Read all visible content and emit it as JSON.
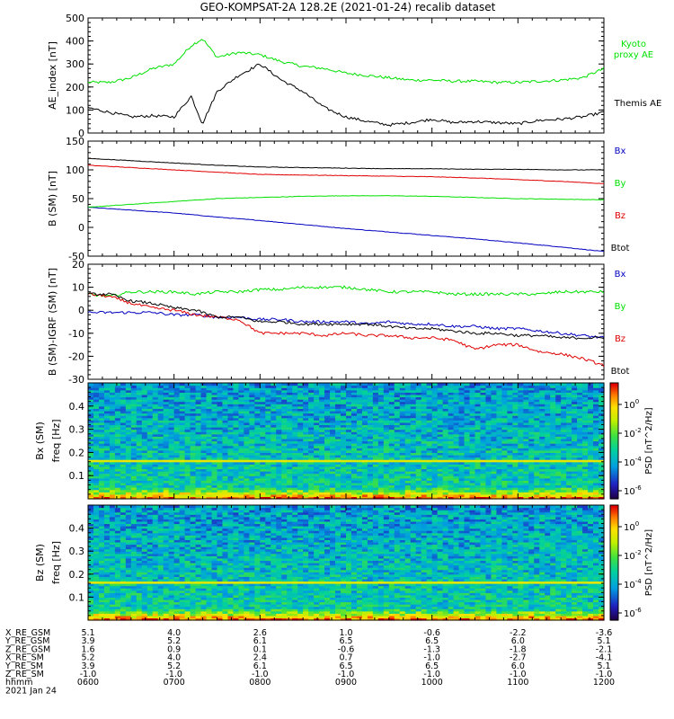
{
  "title": "GEO-KOMPSAT-2A 128.2E (2021-01-24) recalib dataset",
  "chart_data": [
    {
      "type": "line",
      "ylabel": "AE_index [nT]",
      "ylim": [
        0,
        500
      ],
      "yticks": [
        0,
        100,
        200,
        300,
        400,
        500
      ],
      "grid": false,
      "x_hours": [
        6.0,
        6.25,
        6.5,
        6.75,
        7.0,
        7.2,
        7.33,
        7.5,
        7.75,
        8.0,
        8.25,
        8.5,
        8.75,
        9.0,
        9.25,
        9.5,
        9.75,
        10.0,
        10.25,
        10.5,
        10.75,
        11.0,
        11.25,
        11.5,
        11.75,
        12.0
      ],
      "legend_position": "right",
      "series": [
        {
          "name": "Kyoto proxy AE",
          "color": "#00e000",
          "values": [
            220,
            220,
            240,
            280,
            300,
            380,
            410,
            330,
            350,
            340,
            310,
            290,
            280,
            260,
            250,
            240,
            230,
            230,
            225,
            225,
            220,
            220,
            225,
            230,
            240,
            280
          ]
        },
        {
          "name": "Themis AE",
          "color": "#000000",
          "values": [
            110,
            90,
            70,
            75,
            70,
            160,
            40,
            180,
            250,
            300,
            230,
            180,
            110,
            70,
            50,
            35,
            45,
            60,
            45,
            50,
            45,
            40,
            55,
            60,
            70,
            90
          ]
        }
      ]
    },
    {
      "type": "line",
      "ylabel": "B (SM) [nT]",
      "ylim": [
        -50,
        150
      ],
      "yticks": [
        -50,
        0,
        50,
        100,
        150
      ],
      "x_hours": [
        6.0,
        6.5,
        7.0,
        7.5,
        8.0,
        8.5,
        9.0,
        9.5,
        10.0,
        10.5,
        11.0,
        11.5,
        12.0
      ],
      "legend_position": "right",
      "series": [
        {
          "name": "Bx",
          "color": "#0000c0",
          "values": [
            35,
            30,
            25,
            18,
            12,
            5,
            -2,
            -8,
            -14,
            -20,
            -27,
            -34,
            -42
          ]
        },
        {
          "name": "By",
          "color": "#00e000",
          "values": [
            35,
            40,
            45,
            50,
            52,
            54,
            55,
            55,
            54,
            52,
            50,
            49,
            48
          ]
        },
        {
          "name": "Bz",
          "color": "#e00000",
          "values": [
            108,
            104,
            100,
            96,
            92,
            91,
            90,
            89,
            88,
            86,
            83,
            80,
            76
          ]
        },
        {
          "name": "Btot",
          "color": "#000000",
          "values": [
            120,
            116,
            112,
            108,
            105,
            104,
            103,
            102,
            102,
            101,
            101,
            100,
            100
          ]
        }
      ]
    },
    {
      "type": "line",
      "ylabel": "B (SM)-IGRF (SM) [nT]",
      "ylim": [
        -30,
        20
      ],
      "yticks": [
        -30,
        -20,
        -10,
        0,
        10,
        20
      ],
      "x_hours": [
        6.0,
        6.25,
        6.5,
        6.75,
        7.0,
        7.25,
        7.5,
        7.75,
        8.0,
        8.25,
        8.5,
        8.75,
        9.0,
        9.25,
        9.5,
        9.75,
        10.0,
        10.25,
        10.5,
        10.75,
        11.0,
        11.25,
        11.5,
        11.75,
        12.0
      ],
      "legend_position": "right",
      "series": [
        {
          "name": "Bx",
          "color": "#0000c0",
          "values": [
            -1,
            -1,
            -1,
            -1,
            -2,
            -2,
            -3,
            -3,
            -4,
            -4,
            -5,
            -5,
            -5,
            -6,
            -5,
            -6,
            -6,
            -7,
            -7,
            -8,
            -8,
            -9,
            -10,
            -11,
            -12
          ]
        },
        {
          "name": "By",
          "color": "#00e000",
          "values": [
            7,
            6,
            8,
            8,
            8,
            7,
            8,
            8,
            9,
            9,
            10,
            10,
            10,
            9,
            8,
            8,
            8,
            7,
            7,
            7,
            7,
            7,
            8,
            8,
            8
          ]
        },
        {
          "name": "Bz",
          "color": "#e00000",
          "values": [
            7,
            6,
            3,
            1,
            0,
            -2,
            -3,
            -4,
            -10,
            -10,
            -10,
            -11,
            -10,
            -11,
            -11,
            -12,
            -12,
            -13,
            -17,
            -15,
            -15,
            -18,
            -19,
            -21,
            -24
          ]
        },
        {
          "name": "Btot",
          "color": "#000000",
          "values": [
            7,
            7,
            4,
            3,
            1,
            0,
            -3,
            -3,
            -5,
            -5,
            -6,
            -6,
            -6,
            -6,
            -7,
            -8,
            -8,
            -9,
            -10,
            -10,
            -11,
            -11,
            -12,
            -12,
            -12
          ]
        }
      ]
    },
    {
      "type": "heatmap",
      "ylabel": "Bx (SM)",
      "ylabel2": "freq [Hz]",
      "ylim": [
        0,
        0.5
      ],
      "yticks": [
        0.1,
        0.2,
        0.3,
        0.4
      ],
      "colorbar_label": "PSD [nT^2/Hz]",
      "colorbar_ticks": [
        "10^0",
        "10^-2",
        "10^-4",
        "10^-6"
      ],
      "features": {
        "line_freq_hz": 0.167,
        "low_freq_enhancement_below_hz": 0.05
      }
    },
    {
      "type": "heatmap",
      "ylabel": "Bz (SM)",
      "ylabel2": "freq [Hz]",
      "ylim": [
        0,
        0.5
      ],
      "yticks": [
        0.1,
        0.2,
        0.3,
        0.4
      ],
      "colorbar_label": "PSD [nT^2/Hz]",
      "colorbar_ticks": [
        "10^0",
        "10^-2",
        "10^-4",
        "10^-6"
      ],
      "features": {
        "line_freq_hz": 0.167,
        "low_freq_enhancement_below_hz": 0.05
      }
    }
  ],
  "xaxis": {
    "rows": [
      {
        "label": "X_RE_GSM",
        "values": [
          "5.1",
          "4.0",
          "2.6",
          "1.0",
          "-0.6",
          "-2.2",
          "-3.6"
        ]
      },
      {
        "label": "Y_RE_GSM",
        "values": [
          "3.9",
          "5.2",
          "6.1",
          "6.5",
          "6.5",
          "6.0",
          "5.1"
        ]
      },
      {
        "label": "Z_RE_GSM",
        "values": [
          "1.6",
          "0.9",
          "0.1",
          "-0.6",
          "-1.3",
          "-1.8",
          "-2.1"
        ]
      },
      {
        "label": "X_RE_SM",
        "values": [
          "5.2",
          "4.0",
          "2.4",
          "0.7",
          "-1.0",
          "-2.7",
          "-4.1"
        ]
      },
      {
        "label": "Y_RE_SM",
        "values": [
          "3.9",
          "5.2",
          "6.1",
          "6.5",
          "6.5",
          "6.0",
          "5.1"
        ]
      },
      {
        "label": "Z_RE_SM",
        "values": [
          "-1.0",
          "-1.0",
          "-1.0",
          "-1.0",
          "-1.0",
          "-1.0",
          "-1.0"
        ]
      },
      {
        "label": "hhmm",
        "values": [
          "0600",
          "0700",
          "0800",
          "0900",
          "1000",
          "1100",
          "1200"
        ]
      }
    ],
    "date": "2021 Jan 24"
  }
}
